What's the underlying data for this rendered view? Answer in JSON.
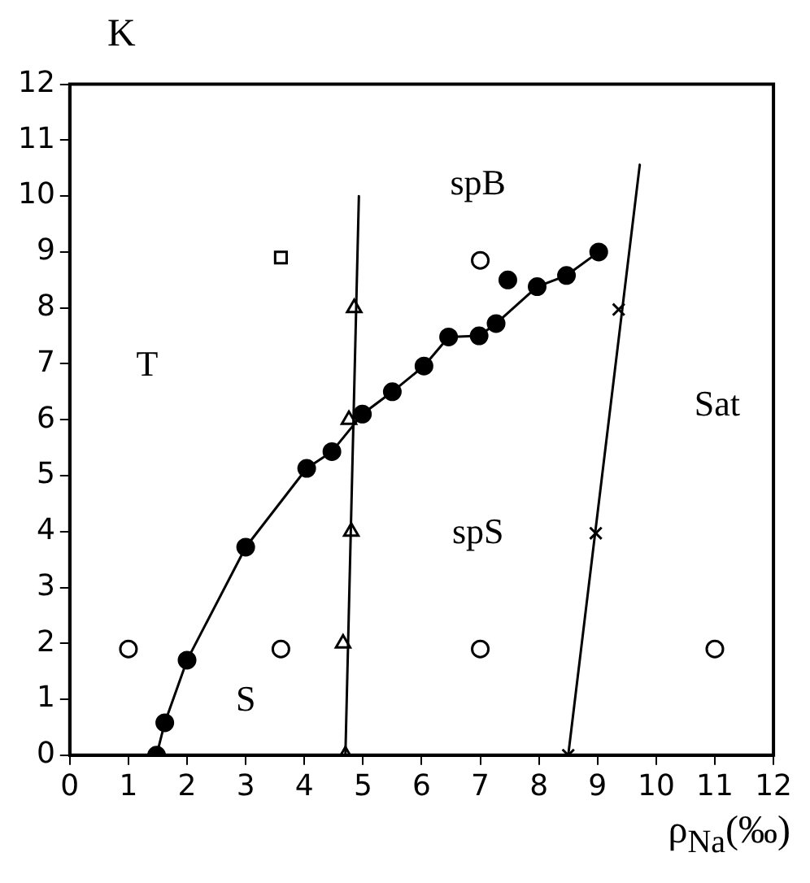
{
  "chart_data": {
    "type": "scatter",
    "xlabel": "ρ$_{Na}$(‰)",
    "ylabel": "K",
    "xlim": [
      0,
      12
    ],
    "ylim": [
      0,
      12
    ],
    "xticks": [
      0,
      1,
      2,
      3,
      4,
      5,
      6,
      7,
      8,
      9,
      10,
      11,
      12
    ],
    "yticks": [
      0,
      1,
      2,
      3,
      4,
      5,
      6,
      7,
      8,
      9,
      10,
      11,
      12
    ],
    "grid": false,
    "legend": false,
    "series": [
      {
        "type": "line",
        "color": "#000000",
        "marker": "circle",
        "x": [
          1.48,
          1.62,
          2.0,
          3.0,
          4.04,
          4.47,
          4.99,
          5.5,
          6.04,
          6.46,
          6.98,
          7.27,
          7.97,
          8.47,
          9.02
        ],
        "values": [
          0,
          0.58,
          1.7,
          3.72,
          5.13,
          5.43,
          6.1,
          6.5,
          6.96,
          7.48,
          7.5,
          7.72,
          8.38,
          8.58,
          9.0
        ]
      },
      {
        "type": "line",
        "color": "#000000",
        "marker": "circle",
        "x": [
          7.47
        ],
        "values": [
          8.5
        ]
      },
      {
        "type": "line",
        "color": "#000000",
        "marker": "none",
        "x": [
          4.7,
          4.93
        ],
        "values": [
          0,
          10.0
        ]
      },
      {
        "type": "scatter",
        "color": "#000000",
        "marker": "triangle",
        "x": [
          4.7,
          4.66,
          4.8,
          4.76,
          4.85
        ],
        "values": [
          0,
          2,
          4,
          6,
          8
        ]
      },
      {
        "type": "line",
        "color": "#000000",
        "marker": "none",
        "x": [
          8.5,
          9.72
        ],
        "values": [
          0,
          10.56
        ]
      },
      {
        "type": "scatter",
        "color": "#000000",
        "marker": "cross",
        "x": [
          8.5,
          8.97,
          9.36
        ],
        "values": [
          0,
          3.97,
          7.97
        ]
      },
      {
        "type": "scatter",
        "color": "#000000",
        "marker": "circle",
        "x": [
          1,
          3.6,
          7,
          11,
          7
        ],
        "values": [
          1.9,
          1.9,
          1.9,
          1.9,
          8.85
        ]
      },
      {
        "type": "scatter",
        "color": "#000000",
        "marker": "square",
        "x": [
          3.6
        ],
        "values": [
          8.9
        ]
      }
    ],
    "annotations": [
      "T",
      "S",
      "spB",
      "spS",
      "Sat"
    ]
  }
}
